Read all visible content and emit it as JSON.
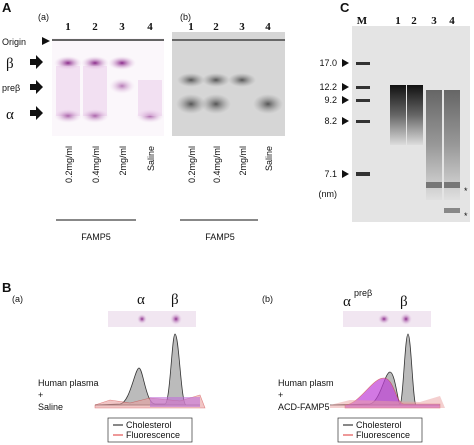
{
  "panel_a": {
    "label": "A",
    "gel_a": {
      "label": "(a)",
      "lanes": [
        "1",
        "2",
        "3",
        "4"
      ],
      "origin": "Origin",
      "bands": [
        "β",
        "preβ",
        "α"
      ],
      "samples": [
        "0.2mg/ml",
        "0.4mg/ml",
        "2mg/ml",
        "Saline"
      ],
      "group": "FAMP5"
    },
    "gel_b": {
      "label": "(b)",
      "lanes": [
        "1",
        "2",
        "3",
        "4"
      ],
      "samples": [
        "0.2mg/ml",
        "0.4mg/ml",
        "2mg/ml",
        "Saline"
      ],
      "group": "FAMP5"
    }
  },
  "panel_c": {
    "label": "C",
    "lanes": [
      "M",
      "1",
      "2",
      "3",
      "4"
    ],
    "markers": [
      "17.0",
      "12.2",
      "9.2",
      "8.2",
      "7.1"
    ],
    "unit": "(nm)",
    "asterisks": [
      "*",
      "*"
    ]
  },
  "panel_b": {
    "label": "B",
    "plots": [
      {
        "label": "(a)",
        "peaks": [
          "α",
          "β"
        ],
        "sample": [
          "Human plasma",
          "+",
          "Saline"
        ],
        "legend": [
          "Cholesterol",
          "Fluorescence"
        ]
      },
      {
        "label": "(b)",
        "peaks": [
          "α",
          "preβ",
          "β"
        ],
        "sample": [
          "Human plasm",
          "+",
          "ACD-FAMP5"
        ],
        "legend": [
          "Cholesterol",
          "Fluorescence"
        ]
      }
    ]
  }
}
